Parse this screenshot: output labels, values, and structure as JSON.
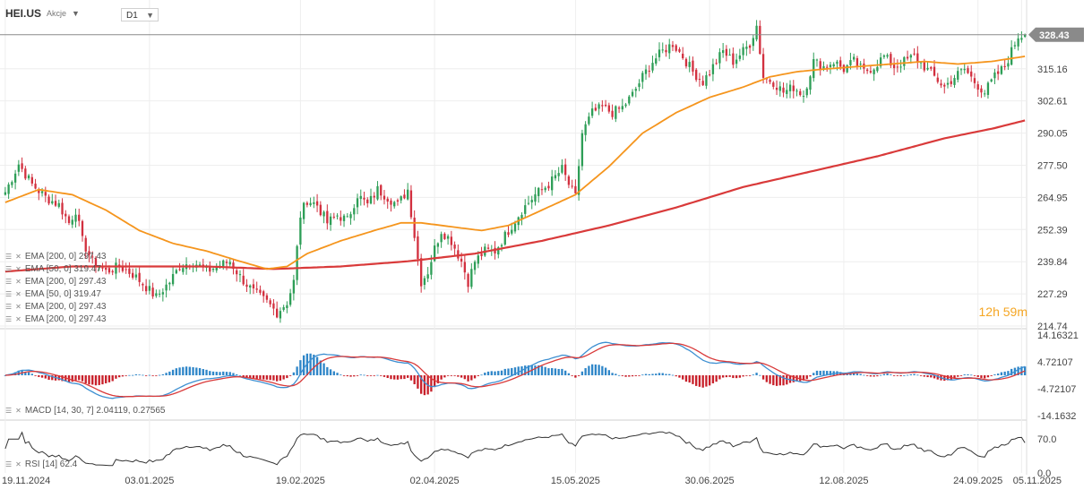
{
  "header": {
    "symbol": "HEI.US",
    "asset_class": "Akcje",
    "timeframe": "D1"
  },
  "last_price_label": "328.43",
  "countdown": {
    "hours": "12",
    "h": "h",
    "minutes": "59",
    "m": "m"
  },
  "overlay_legend": [
    "EMA [200, 0] 297.43",
    "EMA [50, 0] 319.47",
    "EMA [200, 0] 297.43",
    "EMA [50, 0] 319.47",
    "EMA [200, 0] 297.43",
    "EMA [200, 0] 297.43"
  ],
  "macd_legend": "MACD [14, 30, 7] 2.04119, 0.27565",
  "rsi_legend": "RSI [14] 62.4",
  "colors": {
    "up": "#2e9e57",
    "down": "#d2303f",
    "ema50": "#f5951d",
    "ema200": "#d93a3a",
    "macd_line": "#3d8fd1",
    "signal_line": "#d93a3a",
    "hist_up": "#2f86c8",
    "hist_down": "#c8202a",
    "rsi_line": "#333333",
    "grid": "#eeeeee",
    "price_line": "#8a8a8a"
  },
  "chart_data": [
    {
      "type": "candlestick",
      "name": "HEI.US D1",
      "x_tick_labels": [
        "19.11.2024",
        "03.01.2025",
        "19.02.2025",
        "02.04.2025",
        "15.05.2025",
        "30.06.2025",
        "12.08.2025",
        "24.09.2025",
        "05.11.2025"
      ],
      "y_tick_labels": [
        "315.16",
        "302.61",
        "290.05",
        "277.50",
        "264.95",
        "252.39",
        "239.84",
        "227.29",
        "214.74"
      ],
      "ylim": [
        214.74,
        335.0
      ],
      "last_price": 328.43,
      "close_path": [
        [
          0,
          267
        ],
        [
          4,
          278
        ],
        [
          8,
          270
        ],
        [
          12,
          265
        ],
        [
          16,
          262
        ],
        [
          19,
          255
        ],
        [
          21,
          260
        ],
        [
          23,
          248
        ],
        [
          26,
          240
        ],
        [
          30,
          236
        ],
        [
          34,
          238
        ],
        [
          38,
          235
        ],
        [
          42,
          230
        ],
        [
          45,
          226
        ],
        [
          49,
          232
        ],
        [
          52,
          238
        ],
        [
          56,
          240
        ],
        [
          60,
          236
        ],
        [
          63,
          238
        ],
        [
          67,
          240
        ],
        [
          70,
          234
        ],
        [
          74,
          228
        ],
        [
          78,
          224
        ],
        [
          81,
          220
        ],
        [
          84,
          224
        ],
        [
          86,
          232
        ],
        [
          88,
          258
        ],
        [
          90,
          264
        ],
        [
          93,
          262
        ],
        [
          96,
          255
        ],
        [
          99,
          258
        ],
        [
          102,
          256
        ],
        [
          105,
          266
        ],
        [
          108,
          262
        ],
        [
          111,
          268
        ],
        [
          114,
          265
        ],
        [
          117,
          262
        ],
        [
          120,
          268
        ],
        [
          122,
          250
        ],
        [
          124,
          232
        ],
        [
          126,
          236
        ],
        [
          128,
          245
        ],
        [
          130,
          252
        ],
        [
          133,
          248
        ],
        [
          136,
          240
        ],
        [
          138,
          232
        ],
        [
          140,
          240
        ],
        [
          143,
          244
        ],
        [
          146,
          244
        ],
        [
          150,
          252
        ],
        [
          154,
          260
        ],
        [
          158,
          266
        ],
        [
          162,
          270
        ],
        [
          166,
          276
        ],
        [
          168,
          270
        ],
        [
          170,
          265
        ],
        [
          172,
          290
        ],
        [
          175,
          298
        ],
        [
          178,
          300
        ],
        [
          181,
          298
        ],
        [
          184,
          300
        ],
        [
          187,
          305
        ],
        [
          190,
          312
        ],
        [
          193,
          318
        ],
        [
          196,
          322
        ],
        [
          199,
          325
        ],
        [
          202,
          320
        ],
        [
          205,
          314
        ],
        [
          208,
          310
        ],
        [
          211,
          316
        ],
        [
          214,
          322
        ],
        [
          217,
          318
        ],
        [
          220,
          322
        ],
        [
          222,
          325
        ],
        [
          224,
          332
        ],
        [
          226,
          312
        ],
        [
          229,
          310
        ],
        [
          232,
          306
        ],
        [
          235,
          308
        ],
        [
          238,
          305
        ],
        [
          241,
          318
        ],
        [
          244,
          316
        ],
        [
          247,
          318
        ],
        [
          250,
          315
        ],
        [
          253,
          318
        ],
        [
          256,
          314
        ],
        [
          259,
          316
        ],
        [
          262,
          320
        ],
        [
          265,
          316
        ],
        [
          268,
          318
        ],
        [
          271,
          320
        ],
        [
          274,
          316
        ],
        [
          277,
          312
        ],
        [
          280,
          308
        ],
        [
          283,
          312
        ],
        [
          286,
          315
        ],
        [
          289,
          310
        ],
        [
          292,
          306
        ],
        [
          295,
          312
        ],
        [
          298,
          316
        ],
        [
          300,
          322
        ],
        [
          302,
          328
        ],
        [
          304,
          328.43
        ]
      ],
      "ema50_path": [
        [
          0,
          263
        ],
        [
          10,
          268
        ],
        [
          20,
          266
        ],
        [
          30,
          260
        ],
        [
          40,
          252
        ],
        [
          50,
          247
        ],
        [
          60,
          244
        ],
        [
          70,
          240
        ],
        [
          78,
          237
        ],
        [
          84,
          238
        ],
        [
          90,
          243
        ],
        [
          100,
          248
        ],
        [
          110,
          252
        ],
        [
          118,
          255
        ],
        [
          124,
          255
        ],
        [
          130,
          254
        ],
        [
          136,
          253
        ],
        [
          142,
          252
        ],
        [
          150,
          254
        ],
        [
          160,
          260
        ],
        [
          170,
          266
        ],
        [
          180,
          277
        ],
        [
          190,
          290
        ],
        [
          200,
          298
        ],
        [
          210,
          304
        ],
        [
          220,
          308
        ],
        [
          228,
          312
        ],
        [
          236,
          314
        ],
        [
          244,
          315
        ],
        [
          254,
          316
        ],
        [
          264,
          317
        ],
        [
          274,
          318
        ],
        [
          284,
          317
        ],
        [
          294,
          318
        ],
        [
          304,
          320
        ]
      ],
      "ema200_path": [
        [
          0,
          236
        ],
        [
          20,
          238
        ],
        [
          40,
          238
        ],
        [
          60,
          238
        ],
        [
          80,
          237
        ],
        [
          100,
          238
        ],
        [
          120,
          240
        ],
        [
          140,
          243
        ],
        [
          160,
          248
        ],
        [
          180,
          254
        ],
        [
          200,
          261
        ],
        [
          220,
          269
        ],
        [
          240,
          275
        ],
        [
          260,
          281
        ],
        [
          280,
          288
        ],
        [
          295,
          292
        ],
        [
          304,
          295
        ]
      ]
    },
    {
      "type": "line",
      "name": "MACD [14, 30, 7]",
      "y_tick_labels": [
        "14.16321",
        "4.72107",
        "-4.72107",
        "-14.1632"
      ],
      "ylim": [
        -14.1632,
        14.16321
      ],
      "value": 2.04119,
      "signal": 0.27565
    },
    {
      "type": "line",
      "name": "RSI [14]",
      "y_tick_labels": [
        "70.0",
        "0.0"
      ],
      "ylim": [
        0,
        100
      ],
      "value": 62.4
    }
  ]
}
